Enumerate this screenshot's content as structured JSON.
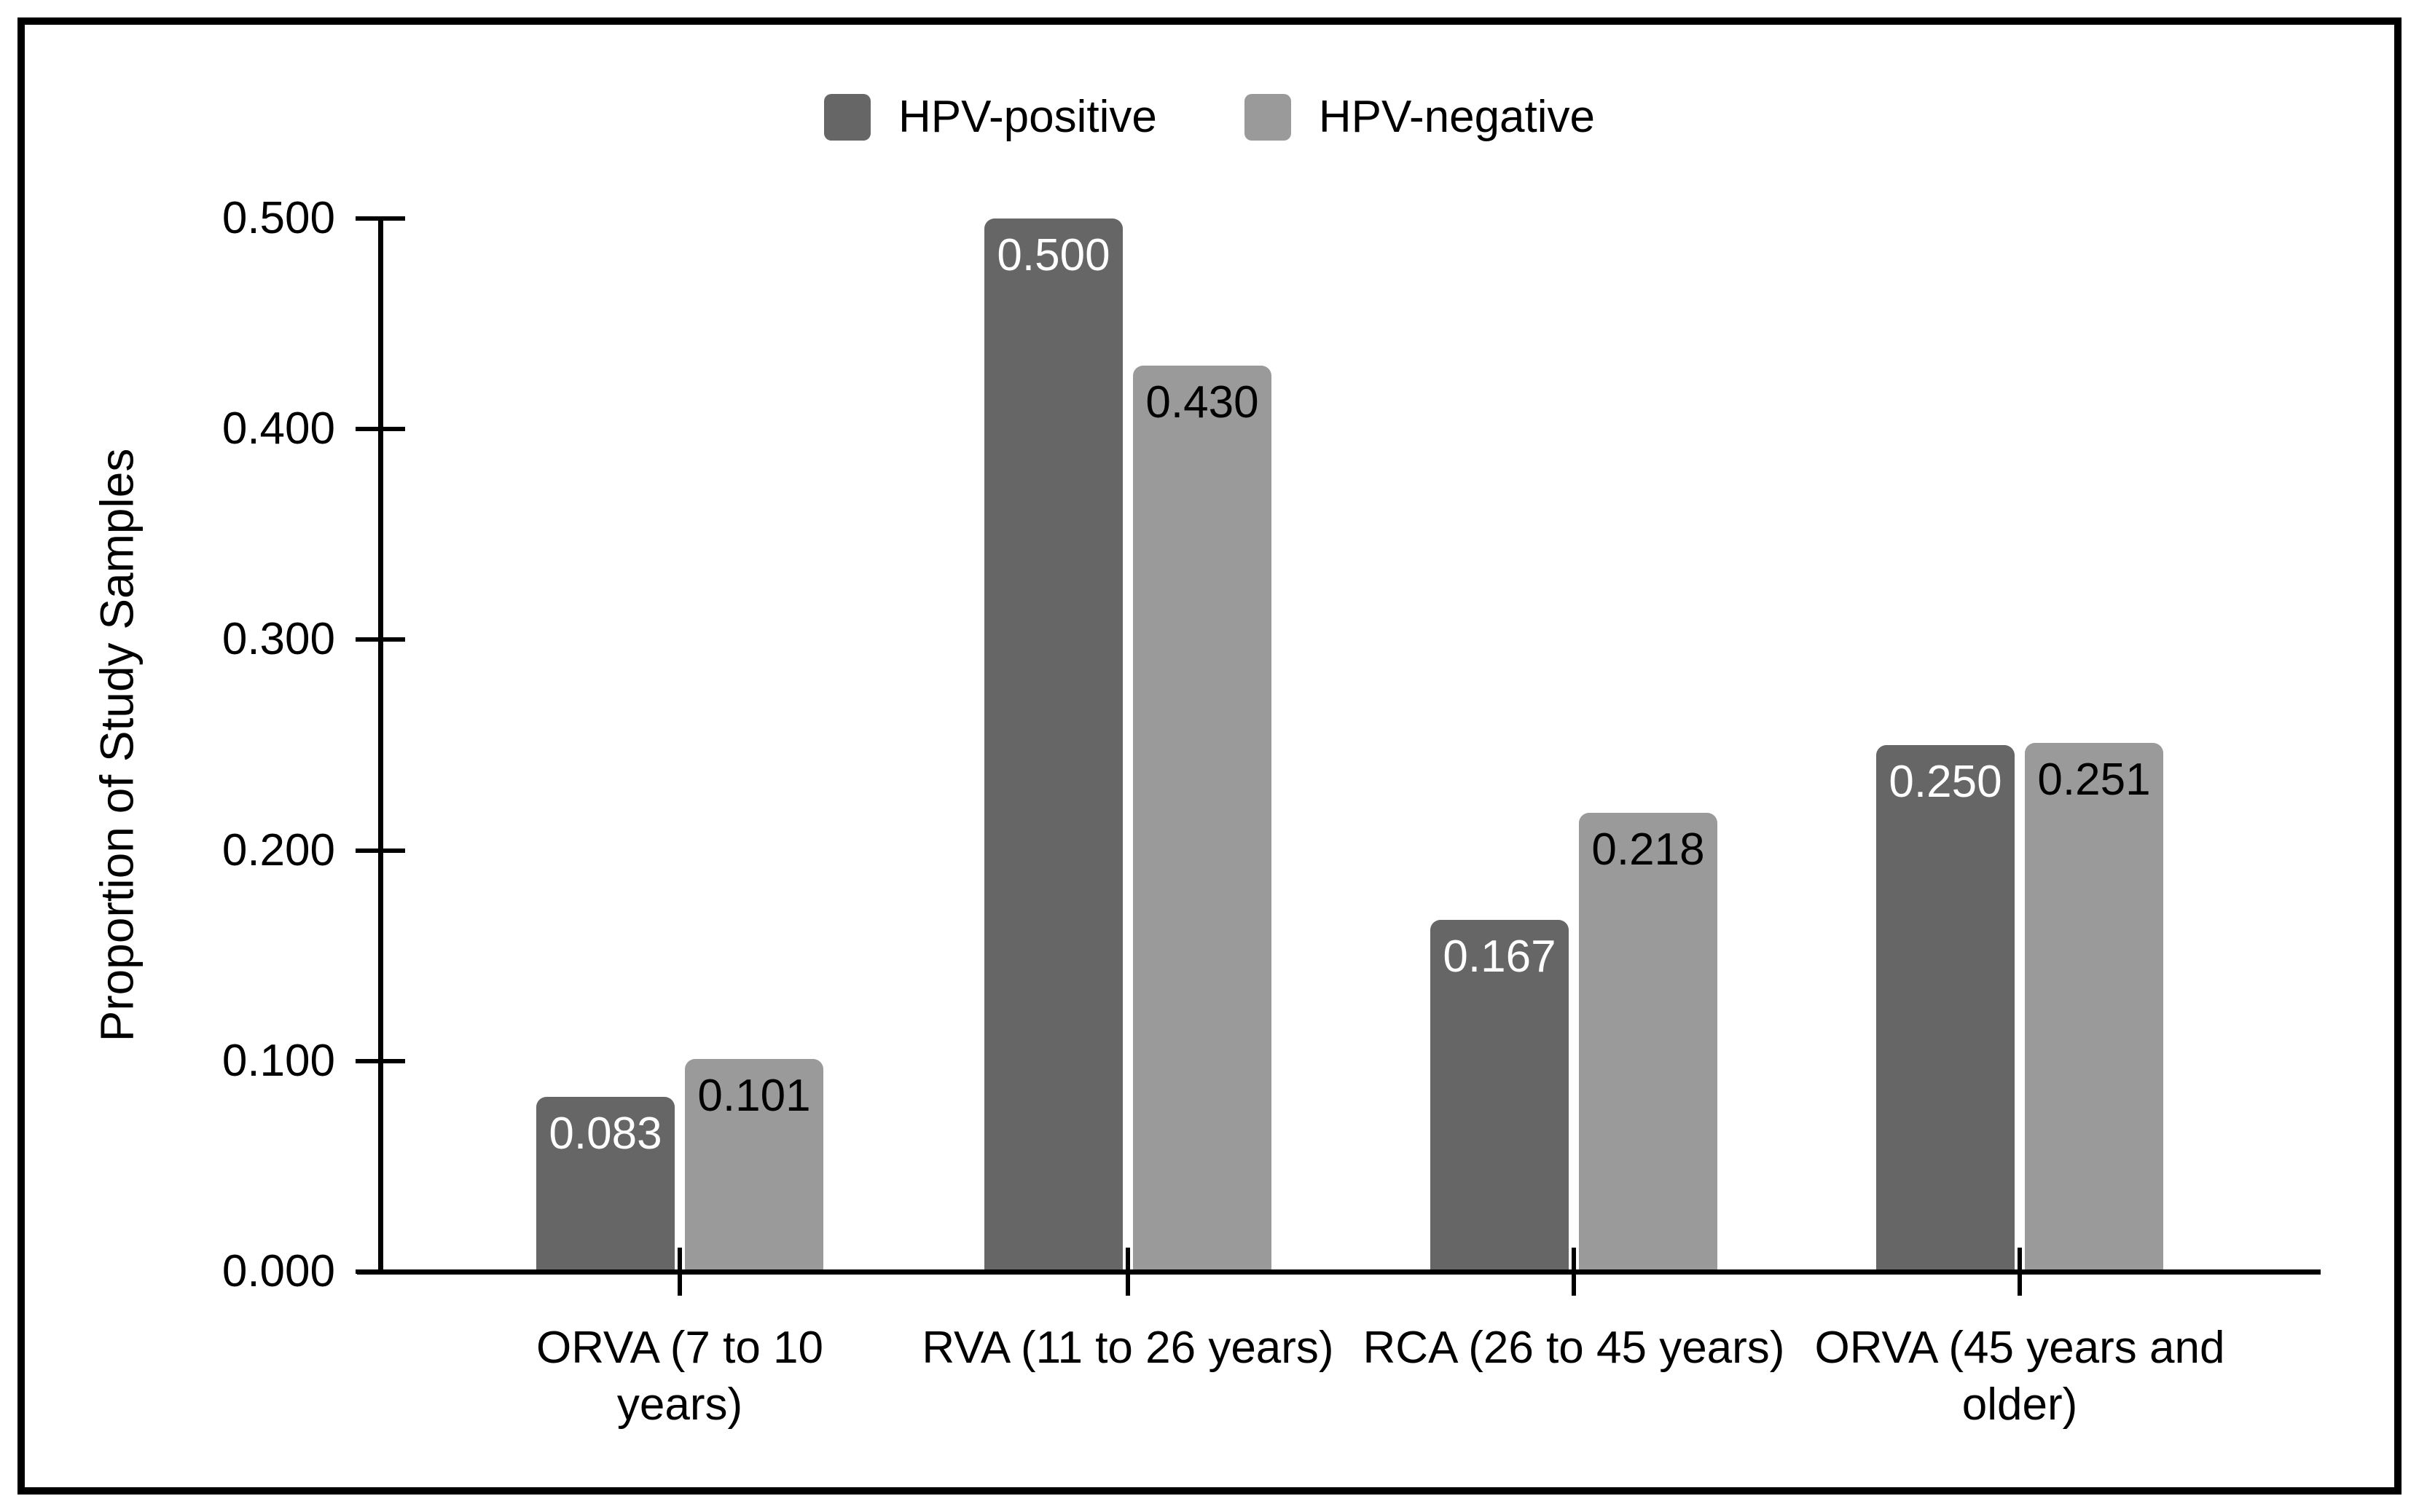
{
  "chart_data": {
    "type": "bar",
    "categories": [
      "ORVA (7 to 10 years)",
      "RVA (11 to 26 years)",
      "RCA (26 to 45 years)",
      "ORVA (45 years and older)"
    ],
    "series": [
      {
        "name": "HPV-positive",
        "color": "#666666",
        "label_color": "#ffffff",
        "values": [
          0.083,
          0.5,
          0.167,
          0.25
        ],
        "value_labels": [
          "0.083",
          "0.500",
          "0.167",
          "0.250"
        ]
      },
      {
        "name": "HPV-negative",
        "color": "#9a9a9a",
        "label_color": "#000000",
        "values": [
          0.101,
          0.43,
          0.218,
          0.251
        ],
        "value_labels": [
          "0.101",
          "0.430",
          "0.218",
          "0.251"
        ]
      }
    ],
    "title": "",
    "xlabel": "",
    "ylabel": "Proportion of Study Samples",
    "ylim": [
      0,
      0.5
    ],
    "yticks": [
      "0.000",
      "0.100",
      "0.200",
      "0.300",
      "0.400",
      "0.500"
    ],
    "grid": false,
    "legend_position": "top"
  }
}
